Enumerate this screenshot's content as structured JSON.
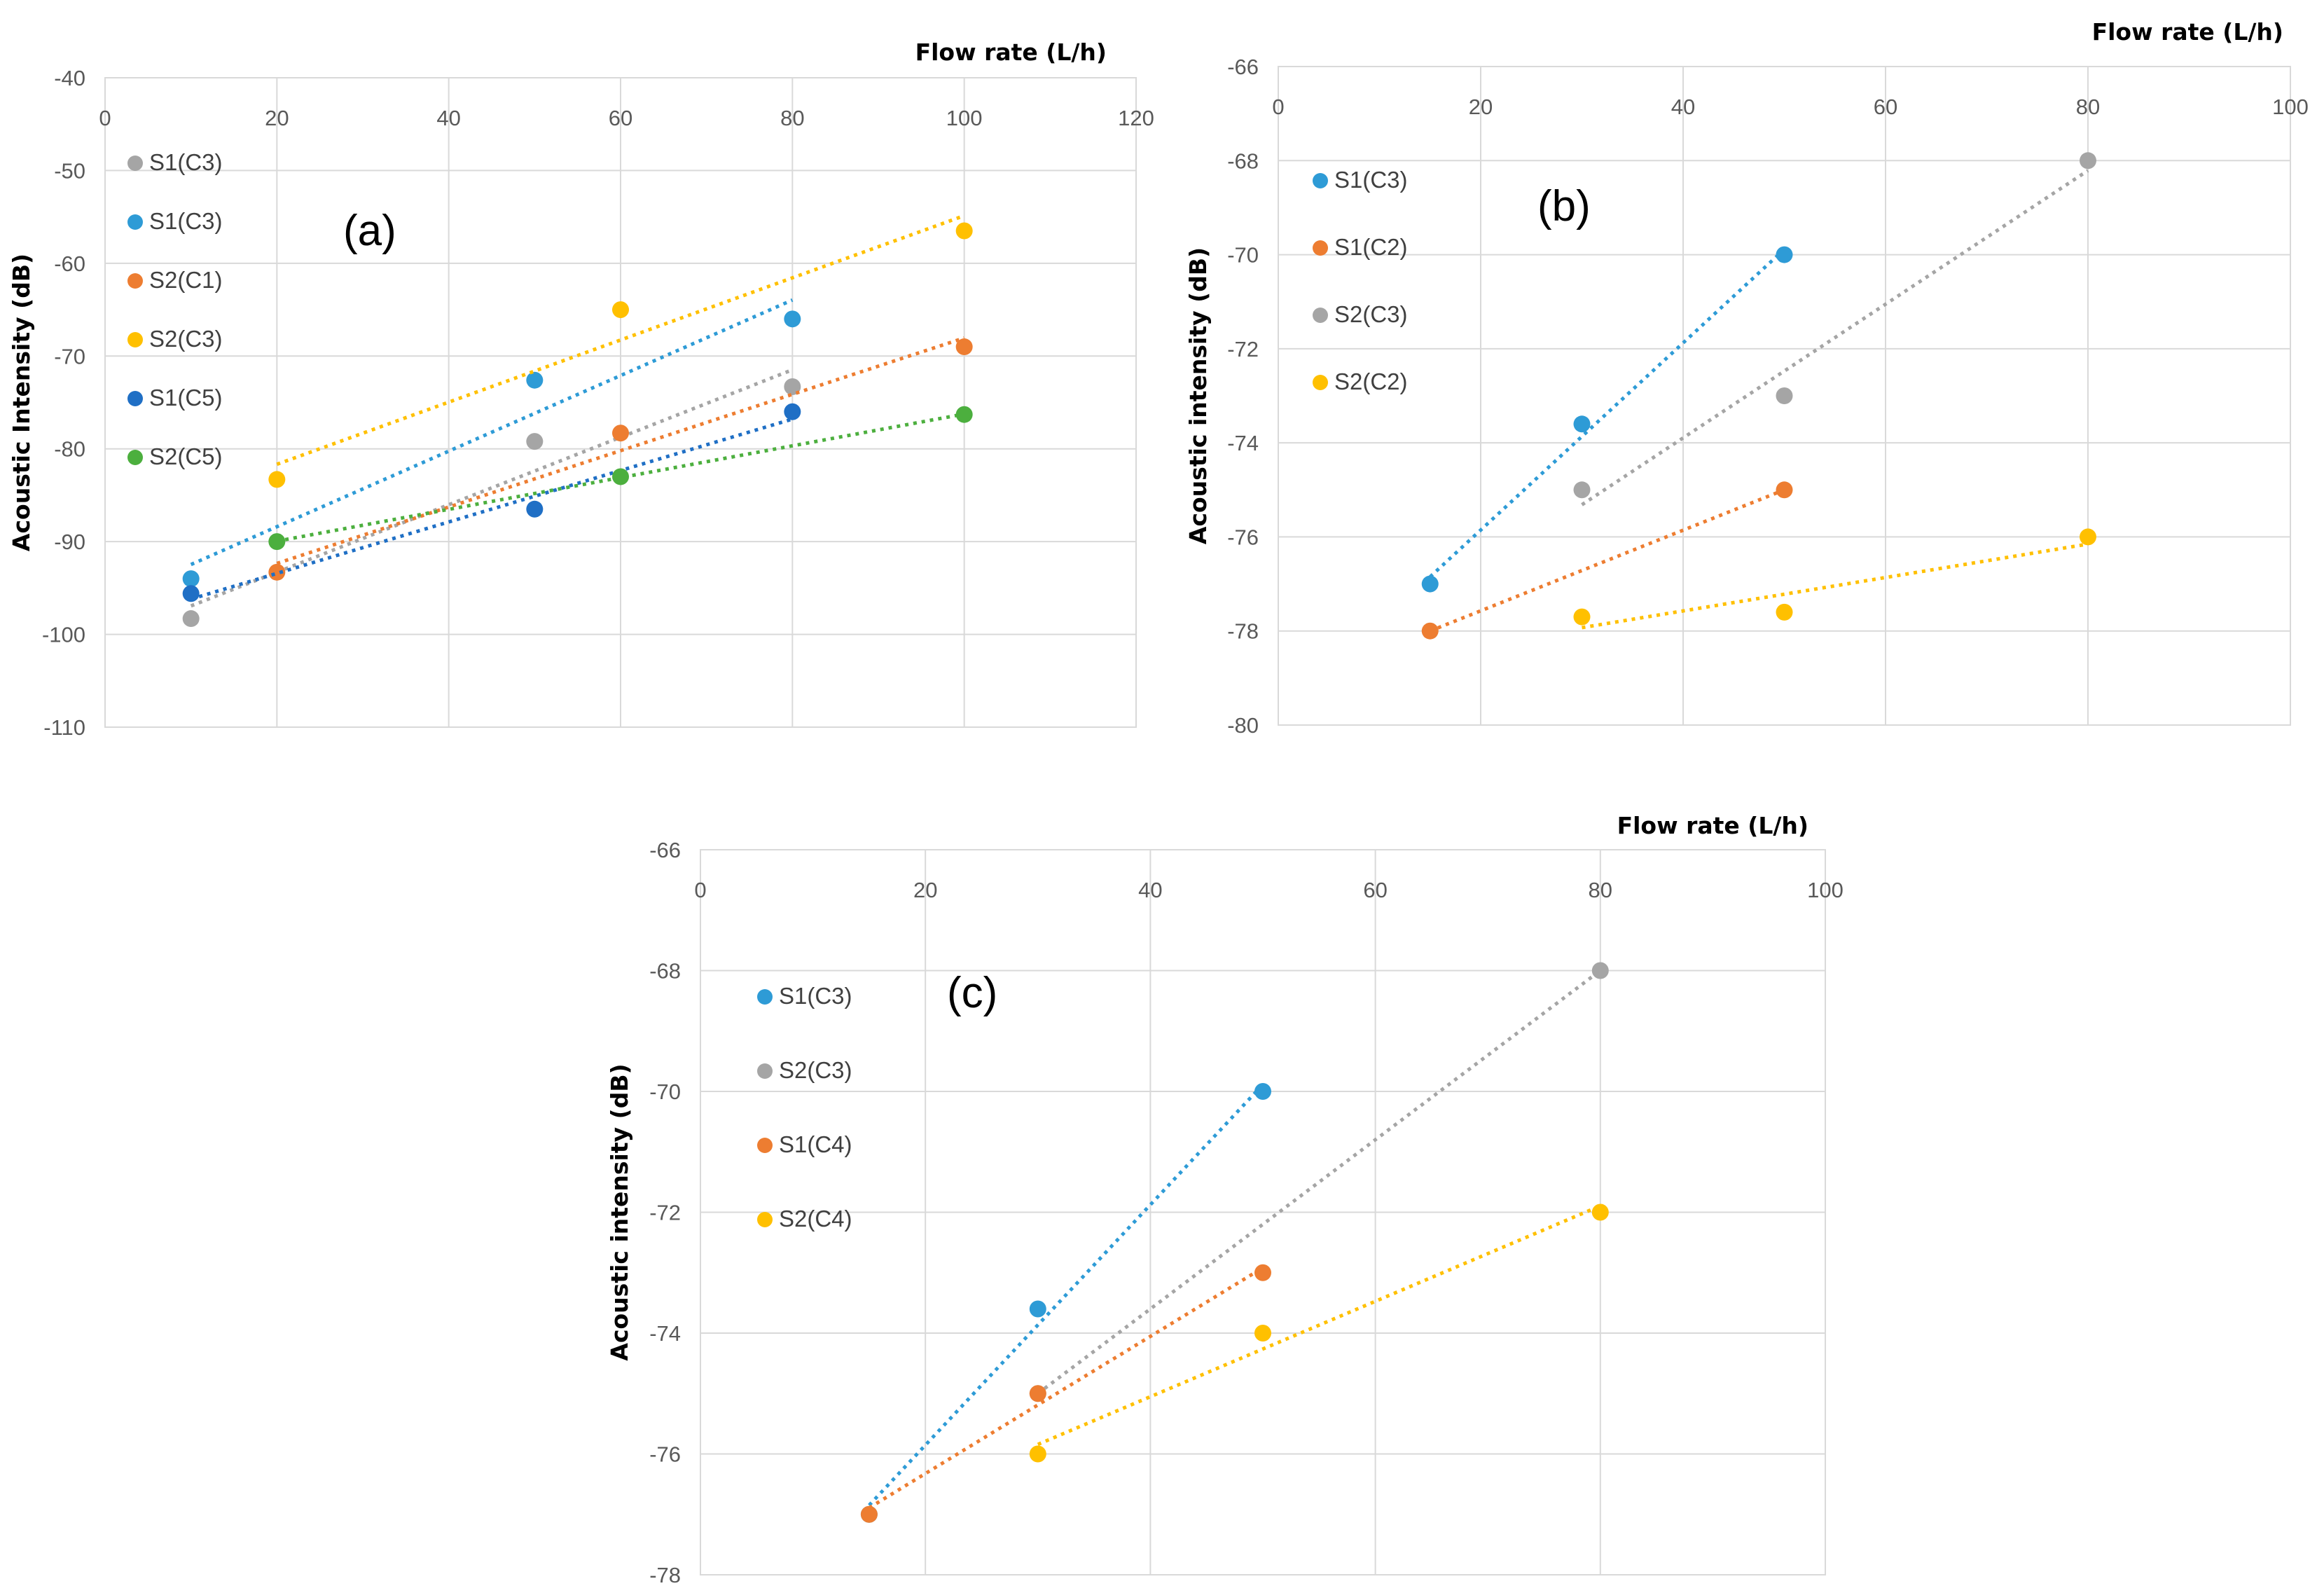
{
  "chart_data": [
    {
      "id": "a",
      "type": "scatter",
      "panel_label": "(a)",
      "xlabel": "Flow rate (L/h)",
      "ylabel": "Acoustic Intensity (dB)",
      "xlim": [
        0,
        120
      ],
      "ylim": [
        -110,
        -40
      ],
      "x_ticks": [
        0,
        20,
        40,
        60,
        80,
        100,
        120
      ],
      "y_ticks": [
        -40,
        -50,
        -60,
        -70,
        -80,
        -90,
        -100,
        -110
      ],
      "x_axis_position": "top",
      "grid": true,
      "trendlines": true,
      "legend_position": "left",
      "series": [
        {
          "name": "S1(C3)",
          "color": "#a5a5a5",
          "x": [
            10,
            50,
            80
          ],
          "y": [
            -98.3,
            -79.2,
            -73.3
          ]
        },
        {
          "name": "S1(C3)",
          "color": "#2e9bd6",
          "x": [
            10,
            50,
            80
          ],
          "y": [
            -94.0,
            -72.6,
            -66.0
          ]
        },
        {
          "name": "S2(C1)",
          "color": "#ed7d31",
          "x": [
            20,
            60,
            100
          ],
          "y": [
            -93.3,
            -78.3,
            -69.0
          ]
        },
        {
          "name": "S2(C3)",
          "color": "#ffc000",
          "x": [
            20,
            60,
            100
          ],
          "y": [
            -83.3,
            -65.0,
            -56.5
          ]
        },
        {
          "name": "S1(C5)",
          "color": "#1f6fc5",
          "x": [
            10,
            50,
            80
          ],
          "y": [
            -95.6,
            -86.5,
            -76.0
          ]
        },
        {
          "name": "S2(C5)",
          "color": "#4caf3e",
          "x": [
            20,
            60,
            100
          ],
          "y": [
            -90.0,
            -83.0,
            -76.3
          ]
        }
      ]
    },
    {
      "id": "b",
      "type": "scatter",
      "panel_label": "(b)",
      "xlabel": "Flow rate (L/h)",
      "ylabel": "Acoustic intensity (dB)",
      "xlim": [
        0,
        100
      ],
      "ylim": [
        -80,
        -66
      ],
      "x_ticks": [
        0,
        20,
        40,
        60,
        80,
        100
      ],
      "y_ticks": [
        -66,
        -68,
        -70,
        -72,
        -74,
        -76,
        -78,
        -80
      ],
      "x_axis_position": "top",
      "grid": true,
      "trendlines": true,
      "legend_position": "left",
      "series": [
        {
          "name": "S1(C3)",
          "color": "#2e9bd6",
          "x": [
            15,
            30,
            50
          ],
          "y": [
            -77.0,
            -73.6,
            -70.0
          ]
        },
        {
          "name": "S1(C2)",
          "color": "#ed7d31",
          "x": [
            15,
            50
          ],
          "y": [
            -78.0,
            -75.0
          ]
        },
        {
          "name": "S2(C3)",
          "color": "#a5a5a5",
          "x": [
            30,
            50,
            80
          ],
          "y": [
            -75.0,
            -73.0,
            -68.0
          ]
        },
        {
          "name": "S2(C2)",
          "color": "#ffc000",
          "x": [
            30,
            50,
            80
          ],
          "y": [
            -77.7,
            -77.6,
            -76.0
          ]
        }
      ]
    },
    {
      "id": "c",
      "type": "scatter",
      "panel_label": "(c)",
      "xlabel": "Flow rate (L/h)",
      "ylabel": "Acoustic intensity (dB)",
      "xlim": [
        0,
        100
      ],
      "ylim": [
        -78,
        -66
      ],
      "x_ticks": [
        0,
        20,
        40,
        60,
        80,
        100
      ],
      "y_ticks": [
        -66,
        -68,
        -70,
        -72,
        -74,
        -76,
        -78
      ],
      "x_axis_position": "top",
      "grid": true,
      "trendlines": true,
      "legend_position": "left",
      "series": [
        {
          "name": "S1(C3)",
          "color": "#2e9bd6",
          "x": [
            15,
            30,
            50
          ],
          "y": [
            -77.0,
            -73.6,
            -70.0
          ]
        },
        {
          "name": "S2(C3)",
          "color": "#a5a5a5",
          "x": [
            30,
            80
          ],
          "y": [
            -75.0,
            -68.0
          ]
        },
        {
          "name": "S1(C4)",
          "color": "#ed7d31",
          "x": [
            15,
            30,
            50
          ],
          "y": [
            -77.0,
            -75.0,
            -73.0
          ]
        },
        {
          "name": "S2(C4)",
          "color": "#ffc000",
          "x": [
            30,
            50,
            80
          ],
          "y": [
            -76.0,
            -74.0,
            -72.0
          ]
        }
      ]
    }
  ]
}
